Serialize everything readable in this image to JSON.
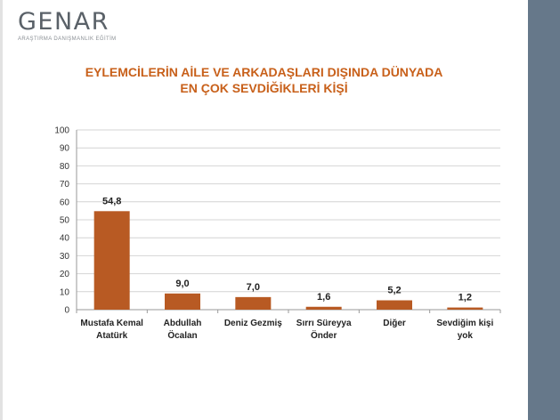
{
  "logo": {
    "name": "GENAR",
    "tagline": "ARAŞTIRMA DANIŞMANLIK EĞİTİM"
  },
  "colors": {
    "bar": "#b85a23",
    "title": "#c8601a",
    "side_panel": "#66788a",
    "grid": "#d4d4d4"
  },
  "chart_data": {
    "type": "bar",
    "title_lines": [
      "EYLEMCİLERİN AİLE VE ARKADAŞLARI DIŞINDA DÜNYADA",
      "EN ÇOK SEVDİĞİKLERİ KİŞİ"
    ],
    "categories": [
      [
        "Mustafa Kemal",
        "Atatürk"
      ],
      [
        "Abdullah",
        "Öcalan"
      ],
      [
        "Deniz Gezmiş"
      ],
      [
        "Sırrı Süreyya",
        "Önder"
      ],
      [
        "Diğer"
      ],
      [
        "Sevdiğim kişi",
        "yok"
      ]
    ],
    "values": [
      54.8,
      9.0,
      7.0,
      1.6,
      5.2,
      1.2
    ],
    "value_labels": [
      "54,8",
      "9,0",
      "7,0",
      "1,6",
      "5,2",
      "1,2"
    ],
    "ylim": [
      0,
      100
    ],
    "yticks": [
      0,
      10,
      20,
      30,
      40,
      50,
      60,
      70,
      80,
      90,
      100
    ],
    "grid": true,
    "legend": "none"
  }
}
